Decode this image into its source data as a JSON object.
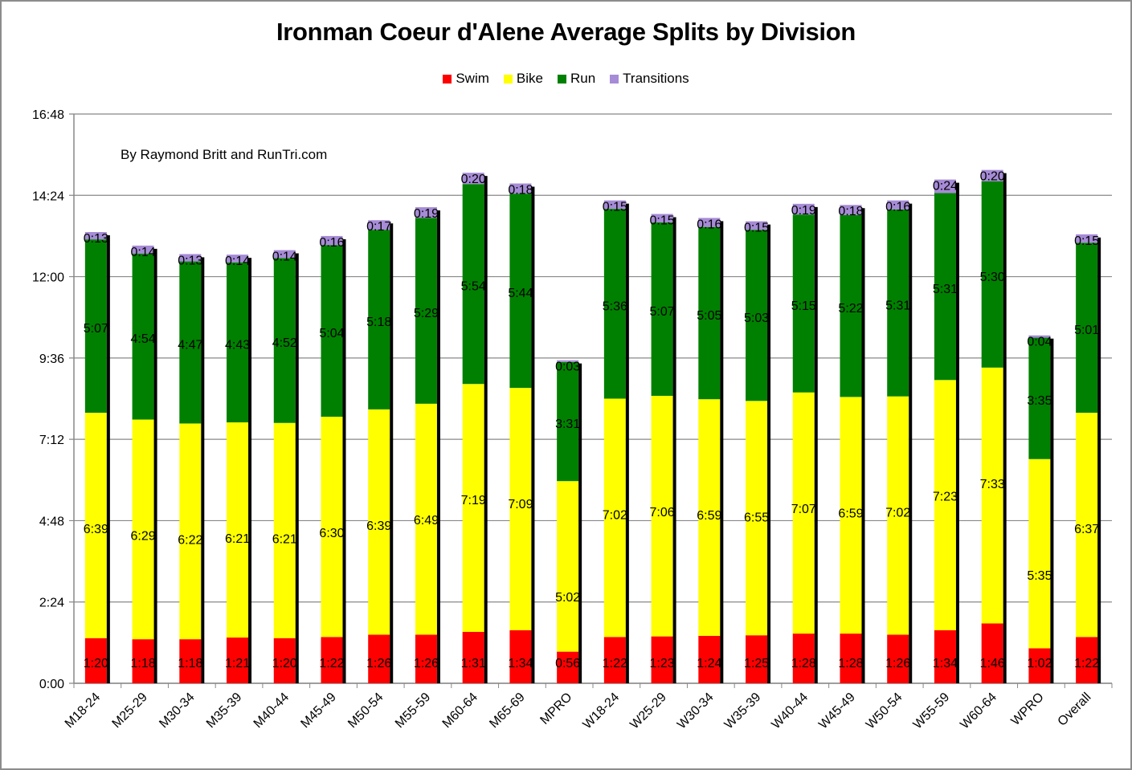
{
  "chart_data": {
    "type": "bar",
    "stacked": true,
    "title": "Ironman Coeur d'Alene Average Splits by Division",
    "annotation": "By Raymond Britt and RunTri.com",
    "xlabel": "",
    "ylabel": "",
    "ylim": [
      "0:00",
      "16:48"
    ],
    "yticks": [
      "0:00",
      "2:24",
      "4:48",
      "7:12",
      "9:36",
      "12:00",
      "14:24",
      "16:48"
    ],
    "grid": true,
    "legend_position": "top-center",
    "categories": [
      "M18-24",
      "M25-29",
      "M30-34",
      "M35-39",
      "M40-44",
      "M45-49",
      "M50-54",
      "M55-59",
      "M60-64",
      "M65-69",
      "MPRO",
      "W18-24",
      "W25-29",
      "W30-34",
      "W35-39",
      "W40-44",
      "W45-49",
      "W50-54",
      "W55-59",
      "W60-64",
      "WPRO",
      "Overall"
    ],
    "series": [
      {
        "name": "Swim",
        "color": "#ff0000",
        "values": [
          "1:20",
          "1:18",
          "1:18",
          "1:21",
          "1:20",
          "1:22",
          "1:26",
          "1:26",
          "1:31",
          "1:34",
          "0:56",
          "1:22",
          "1:23",
          "1:24",
          "1:25",
          "1:28",
          "1:28",
          "1:26",
          "1:34",
          "1:46",
          "1:02",
          "1:22"
        ]
      },
      {
        "name": "Bike",
        "color": "#ffff00",
        "values": [
          "6:39",
          "6:29",
          "6:22",
          "6:21",
          "6:21",
          "6:30",
          "6:39",
          "6:49",
          "7:19",
          "7:09",
          "5:02",
          "7:02",
          "7:06",
          "6:59",
          "6:55",
          "7:07",
          "6:59",
          "7:02",
          "7:23",
          "7:33",
          "5:35",
          "6:37"
        ]
      },
      {
        "name": "Run",
        "color": "#008000",
        "values": [
          "5:07",
          "4:54",
          "4:47",
          "4:43",
          "4:52",
          "5:04",
          "5:18",
          "5:29",
          "5:54",
          "5:44",
          "3:31",
          "5:36",
          "5:07",
          "5:05",
          "5:03",
          "5:15",
          "5:22",
          "5:31",
          "5:31",
          "5:30",
          "3:35",
          "5:01"
        ]
      },
      {
        "name": "Transitions",
        "color": "#a68bd6",
        "values": [
          "0:13",
          "0:14",
          "0:13",
          "0:14",
          "0:14",
          "0:16",
          "0:17",
          "0:19",
          "0:20",
          "0:18",
          "0:03",
          "0:15",
          "0:15",
          "0:16",
          "0:15",
          "0:19",
          "0:18",
          "0:16",
          "0:24",
          "0:20",
          "0:04",
          "0:15"
        ]
      }
    ]
  }
}
